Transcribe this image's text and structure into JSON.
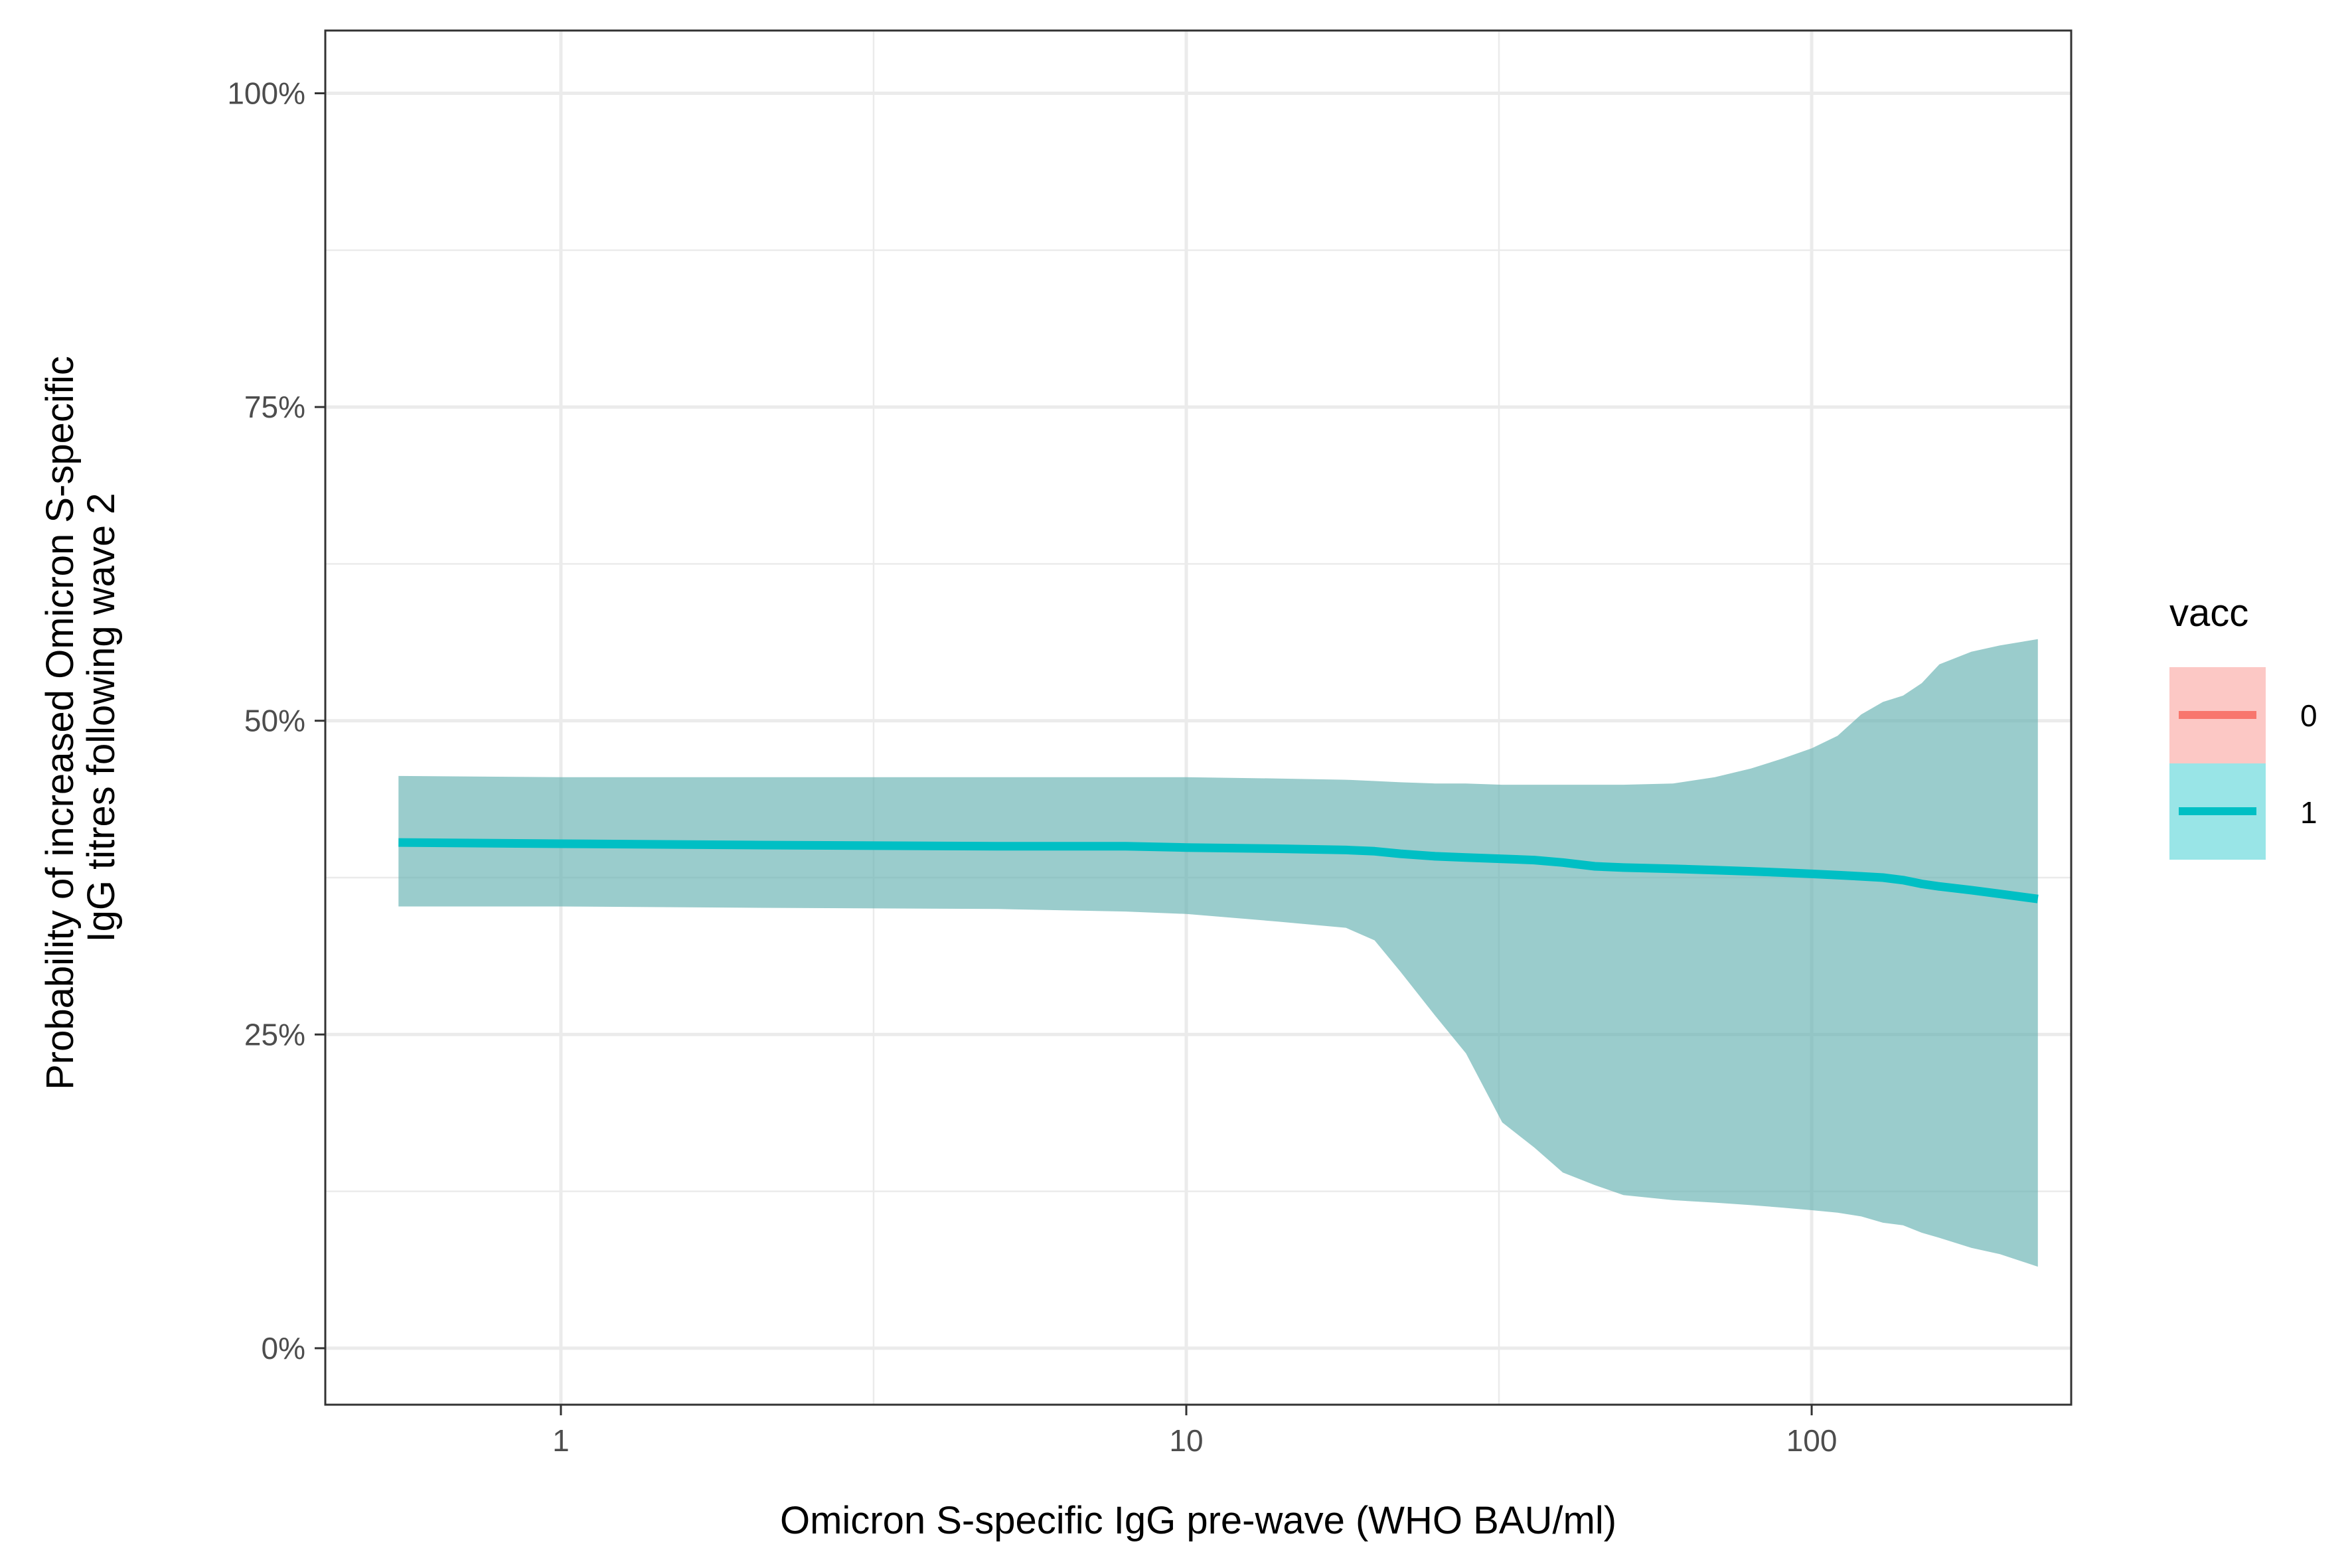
{
  "chart_data": {
    "type": "line",
    "xlabel": "Omicron S-specific IgG pre-wave (WHO BAU/ml)",
    "ylabel": [
      "Probability of increased Omicron S-specific",
      "IgG titres following wave 2"
    ],
    "x_scale": "log10",
    "xlim": [
      0.42,
      260
    ],
    "ylim": [
      -0.045,
      1.05
    ],
    "x_ticks": [
      {
        "value": 1,
        "label": "1"
      },
      {
        "value": 10,
        "label": "10"
      },
      {
        "value": 100,
        "label": "100"
      }
    ],
    "y_ticks": [
      {
        "value": 0,
        "label": "0%"
      },
      {
        "value": 0.25,
        "label": "25%"
      },
      {
        "value": 0.5,
        "label": "50%"
      },
      {
        "value": 0.75,
        "label": "75%"
      },
      {
        "value": 1,
        "label": "100%"
      }
    ],
    "grid": true,
    "legend": {
      "title": "vacc",
      "position": "right",
      "entries": [
        {
          "label": "0",
          "color": "#F8766D"
        },
        {
          "label": "1",
          "color": "#00BFC4"
        }
      ]
    },
    "series": [
      {
        "name": "1",
        "color": "#00BFC4",
        "ribbon_color": "#66b2b2",
        "x": [
          0.55,
          1,
          2,
          5,
          8,
          10,
          14,
          18,
          20,
          22,
          25,
          28,
          32,
          36,
          40,
          45,
          50,
          60,
          70,
          80,
          90,
          100,
          110,
          120,
          130,
          140,
          150,
          160,
          180,
          200,
          230
        ],
        "y": [
          0.403,
          0.402,
          0.401,
          0.4,
          0.4,
          0.399,
          0.398,
          0.397,
          0.396,
          0.394,
          0.392,
          0.391,
          0.39,
          0.389,
          0.387,
          0.384,
          0.383,
          0.382,
          0.381,
          0.38,
          0.379,
          0.378,
          0.377,
          0.376,
          0.375,
          0.373,
          0.37,
          0.368,
          0.365,
          0.362,
          0.358
        ],
        "lower": [
          0.352,
          0.352,
          0.351,
          0.35,
          0.348,
          0.346,
          0.34,
          0.335,
          0.325,
          0.3,
          0.265,
          0.235,
          0.18,
          0.16,
          0.14,
          0.13,
          0.122,
          0.118,
          0.116,
          0.114,
          0.112,
          0.11,
          0.108,
          0.105,
          0.1,
          0.098,
          0.092,
          0.088,
          0.08,
          0.075,
          0.065
        ],
        "upper": [
          0.456,
          0.455,
          0.455,
          0.455,
          0.455,
          0.455,
          0.454,
          0.453,
          0.452,
          0.451,
          0.45,
          0.45,
          0.449,
          0.449,
          0.449,
          0.449,
          0.449,
          0.45,
          0.455,
          0.462,
          0.47,
          0.478,
          0.488,
          0.505,
          0.515,
          0.52,
          0.53,
          0.545,
          0.555,
          0.56,
          0.565
        ]
      }
    ]
  }
}
